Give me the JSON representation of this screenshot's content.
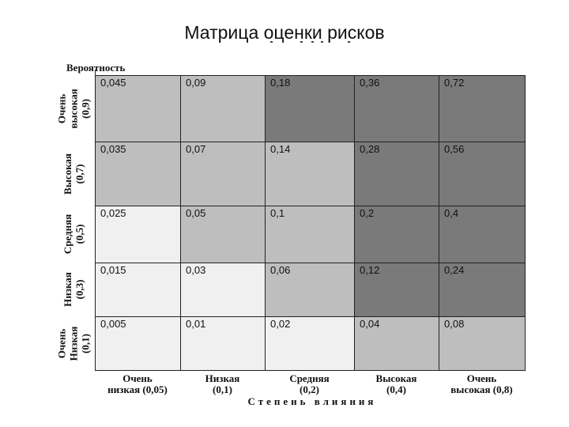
{
  "title": "Матрица оценки рисков",
  "probability_label": "Вероятность",
  "impact_label": "Степень влияния",
  "rows": [
    {
      "label_top": "Очень",
      "label_mid": "высокая",
      "label_bot": "(0,9)"
    },
    {
      "label_top": "",
      "label_mid": "Высокая",
      "label_bot": "(0,7)"
    },
    {
      "label_top": "",
      "label_mid": "Средняя",
      "label_bot": "(0,5)"
    },
    {
      "label_top": "",
      "label_mid": "Низкая",
      "label_bot": "(0,3)"
    },
    {
      "label_top": "Очень",
      "label_mid": "Низкая",
      "label_bot": "(0,1)"
    }
  ],
  "columns": [
    {
      "label_top": "Очень",
      "label_bot": "низкая (0,05)"
    },
    {
      "label_top": "Низкая",
      "label_bot": "(0,1)"
    },
    {
      "label_top": "Средняя",
      "label_bot": "(0,2)"
    },
    {
      "label_top": "Высокая",
      "label_bot": "(0,4)"
    },
    {
      "label_top": "Очень",
      "label_bot": "высокая (0,8)"
    }
  ],
  "colors": {
    "low": "#f0f0f0",
    "medium": "#bebebe",
    "high": "#7a7a7a"
  },
  "cells": [
    [
      {
        "value": "0,045",
        "level": "medium"
      },
      {
        "value": "0,09",
        "level": "medium"
      },
      {
        "value": "0,18",
        "level": "high"
      },
      {
        "value": "0,36",
        "level": "high"
      },
      {
        "value": "0,72",
        "level": "high"
      }
    ],
    [
      {
        "value": "0,035",
        "level": "medium"
      },
      {
        "value": "0,07",
        "level": "medium"
      },
      {
        "value": "0,14",
        "level": "medium"
      },
      {
        "value": "0,28",
        "level": "high"
      },
      {
        "value": "0,56",
        "level": "high"
      }
    ],
    [
      {
        "value": "0,025",
        "level": "low"
      },
      {
        "value": "0,05",
        "level": "medium"
      },
      {
        "value": "0,1",
        "level": "medium"
      },
      {
        "value": "0,2",
        "level": "high"
      },
      {
        "value": "0,4",
        "level": "high"
      }
    ],
    [
      {
        "value": "0,015",
        "level": "low"
      },
      {
        "value": "0,03",
        "level": "low"
      },
      {
        "value": "0,06",
        "level": "medium"
      },
      {
        "value": "0,12",
        "level": "high"
      },
      {
        "value": "0,24",
        "level": "high"
      }
    ],
    [
      {
        "value": "0,005",
        "level": "low"
      },
      {
        "value": "0,01",
        "level": "low"
      },
      {
        "value": "0,02",
        "level": "low"
      },
      {
        "value": "0,04",
        "level": "medium"
      },
      {
        "value": "0,08",
        "level": "medium"
      }
    ]
  ]
}
